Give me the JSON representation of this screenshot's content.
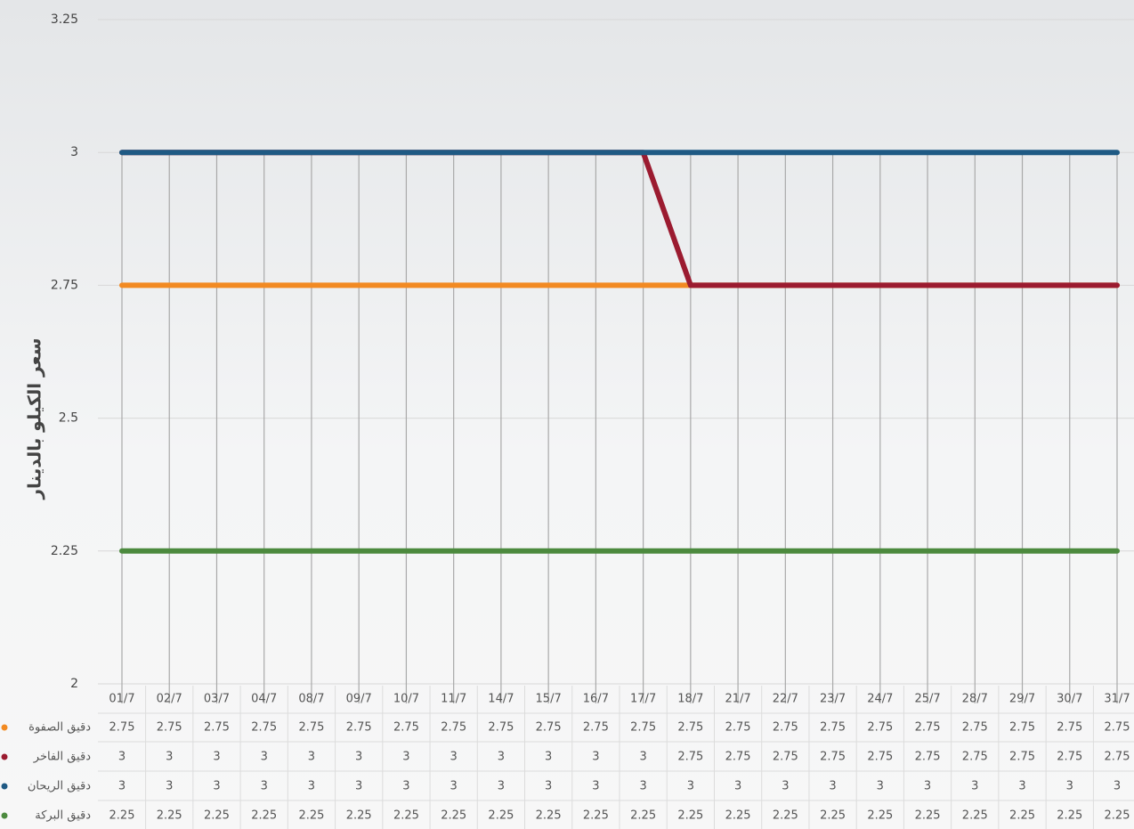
{
  "chart_data": {
    "type": "line",
    "y_label": "سعر الكيلو بالدينار",
    "categories": [
      "01/7",
      "02/7",
      "03/7",
      "04/7",
      "08/7",
      "09/7",
      "10/7",
      "11/7",
      "14/7",
      "15/7",
      "16/7",
      "17/7",
      "18/7",
      "21/7",
      "22/7",
      "23/7",
      "24/7",
      "25/7",
      "28/7",
      "29/7",
      "30/7",
      "31/7"
    ],
    "series": [
      {
        "name": "دقيق الصفوة",
        "color": "#f28a22",
        "values": [
          2.75,
          2.75,
          2.75,
          2.75,
          2.75,
          2.75,
          2.75,
          2.75,
          2.75,
          2.75,
          2.75,
          2.75,
          2.75,
          2.75,
          2.75,
          2.75,
          2.75,
          2.75,
          2.75,
          2.75,
          2.75,
          2.75
        ]
      },
      {
        "name": "دقيق الفاخر",
        "color": "#9b1b30",
        "values": [
          3,
          3,
          3,
          3,
          3,
          3,
          3,
          3,
          3,
          3,
          3,
          3,
          2.75,
          2.75,
          2.75,
          2.75,
          2.75,
          2.75,
          2.75,
          2.75,
          2.75,
          2.75
        ]
      },
      {
        "name": "دقيق الريحان",
        "color": "#1f5a84",
        "values": [
          3,
          3,
          3,
          3,
          3,
          3,
          3,
          3,
          3,
          3,
          3,
          3,
          3,
          3,
          3,
          3,
          3,
          3,
          3,
          3,
          3,
          3
        ]
      },
      {
        "name": "دقيق البركة",
        "color": "#4c8a3e",
        "values": [
          2.25,
          2.25,
          2.25,
          2.25,
          2.25,
          2.25,
          2.25,
          2.25,
          2.25,
          2.25,
          2.25,
          2.25,
          2.25,
          2.25,
          2.25,
          2.25,
          2.25,
          2.25,
          2.25,
          2.25,
          2.25,
          2.25
        ]
      }
    ],
    "ylim": [
      2,
      3.25
    ],
    "yticks": [
      2,
      2.25,
      2.5,
      2.75,
      3,
      3.25
    ],
    "grid": true,
    "data_table": true
  }
}
